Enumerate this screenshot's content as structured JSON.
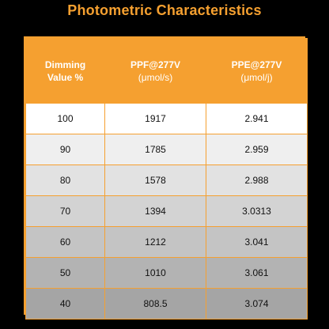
{
  "title": "Photometric Characteristics",
  "colors": {
    "accent": "#f5a030",
    "background": "#000000"
  },
  "table": {
    "headers": [
      {
        "line1": "Dimming",
        "line2": "Value %"
      },
      {
        "line1": "PPF@277V",
        "line2": "(μmol/s)"
      },
      {
        "line1": "PPE@277V",
        "line2": "(μmol/j)"
      }
    ],
    "rows": [
      {
        "dimming": "100",
        "ppf": "1917",
        "ppe": "2.941",
        "shade": "#ffffff"
      },
      {
        "dimming": "90",
        "ppf": "1785",
        "ppe": "2.959",
        "shade": "#efefef"
      },
      {
        "dimming": "80",
        "ppf": "1578",
        "ppe": "2.988",
        "shade": "#e2e2e2"
      },
      {
        "dimming": "70",
        "ppf": "1394",
        "ppe": "3.0313",
        "shade": "#d3d3d3"
      },
      {
        "dimming": "60",
        "ppf": "1212",
        "ppe": "3.041",
        "shade": "#c4c4c4"
      },
      {
        "dimming": "50",
        "ppf": "1010",
        "ppe": "3.061",
        "shade": "#b3b3b3"
      },
      {
        "dimming": "40",
        "ppf": "808.5",
        "ppe": "3.074",
        "shade": "#a5a5a5"
      }
    ]
  }
}
